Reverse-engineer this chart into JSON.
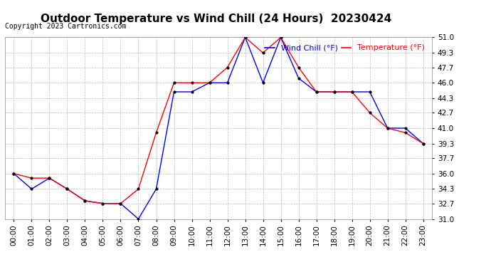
{
  "title": "Outdoor Temperature vs Wind Chill (24 Hours)  20230424",
  "copyright": "Copyright 2023 Cartronics.com",
  "legend_wind_chill": "Wind Chill (°F)",
  "legend_temperature": "Temperature (°F)",
  "hours": [
    0,
    1,
    2,
    3,
    4,
    5,
    6,
    7,
    8,
    9,
    10,
    11,
    12,
    13,
    14,
    15,
    16,
    17,
    18,
    19,
    20,
    21,
    22,
    23
  ],
  "temperature": [
    36.0,
    35.5,
    35.5,
    34.3,
    33.0,
    32.7,
    32.7,
    34.3,
    40.5,
    46.0,
    46.0,
    46.0,
    47.7,
    51.0,
    49.3,
    51.0,
    47.7,
    45.0,
    45.0,
    45.0,
    42.7,
    41.0,
    40.5,
    39.3
  ],
  "wind_chill": [
    36.0,
    34.3,
    35.5,
    34.3,
    33.0,
    32.7,
    32.7,
    31.0,
    34.3,
    45.0,
    45.0,
    46.0,
    46.0,
    51.0,
    46.0,
    51.0,
    46.5,
    45.0,
    45.0,
    45.0,
    45.0,
    41.0,
    41.0,
    39.3
  ],
  "wind_chill_color": "blue",
  "temperature_color": "red",
  "marker": ".",
  "marker_color": "black",
  "marker_size": 4,
  "ylim": [
    31.0,
    51.0
  ],
  "yticks": [
    31.0,
    32.7,
    34.3,
    36.0,
    37.7,
    39.3,
    41.0,
    42.7,
    44.3,
    46.0,
    47.7,
    49.3,
    51.0
  ],
  "background_color": "#ffffff",
  "grid_color": "#bbbbbb",
  "title_fontsize": 11,
  "axis_fontsize": 7.5,
  "copyright_fontsize": 7,
  "legend_fontsize": 8
}
